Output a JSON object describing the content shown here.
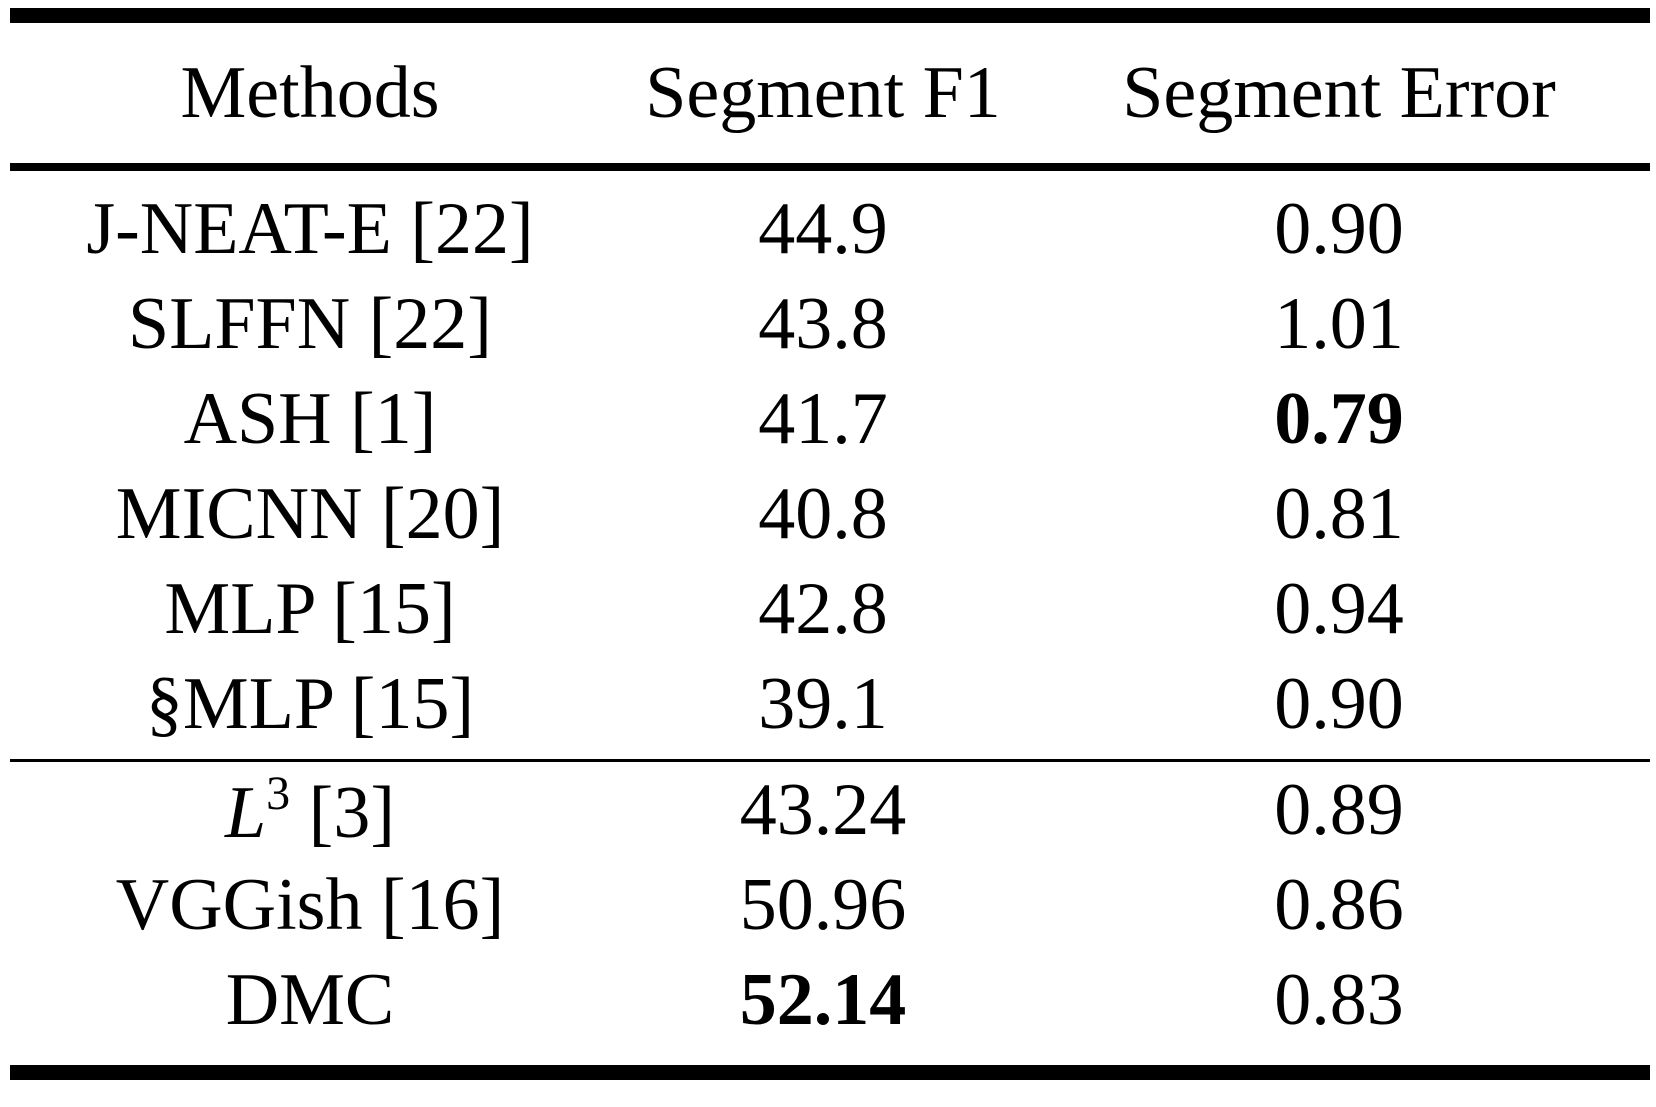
{
  "header": {
    "methods": "Methods",
    "f1": "Segment F1",
    "error": "Segment Error"
  },
  "group1": [
    {
      "method": "J-NEAT-E [22]",
      "f1": "44.9",
      "error": "0.90",
      "f1_bold": false,
      "error_bold": false
    },
    {
      "method": "SLFFN [22]",
      "f1": "43.8",
      "error": "1.01",
      "f1_bold": false,
      "error_bold": false
    },
    {
      "method": "ASH [1]",
      "f1": "41.7",
      "error": "0.79",
      "f1_bold": false,
      "error_bold": true
    },
    {
      "method": "MICNN [20]",
      "f1": "40.8",
      "error": "0.81",
      "f1_bold": false,
      "error_bold": false
    },
    {
      "method": "MLP [15]",
      "f1": "42.8",
      "error": "0.94",
      "f1_bold": false,
      "error_bold": false
    },
    {
      "method": "§MLP [15]",
      "f1": "39.1",
      "error": "0.90",
      "f1_bold": false,
      "error_bold": false
    }
  ],
  "group2": [
    {
      "method_base": "L",
      "method_sup": "3",
      "method_rest": " [3]",
      "f1": "43.24",
      "error": "0.89"
    },
    {
      "method": "VGGish [16]",
      "f1": "50.96",
      "error": "0.86"
    },
    {
      "method": "DMC",
      "f1": "52.14",
      "error": "0.83",
      "f1_bold": true
    }
  ]
}
